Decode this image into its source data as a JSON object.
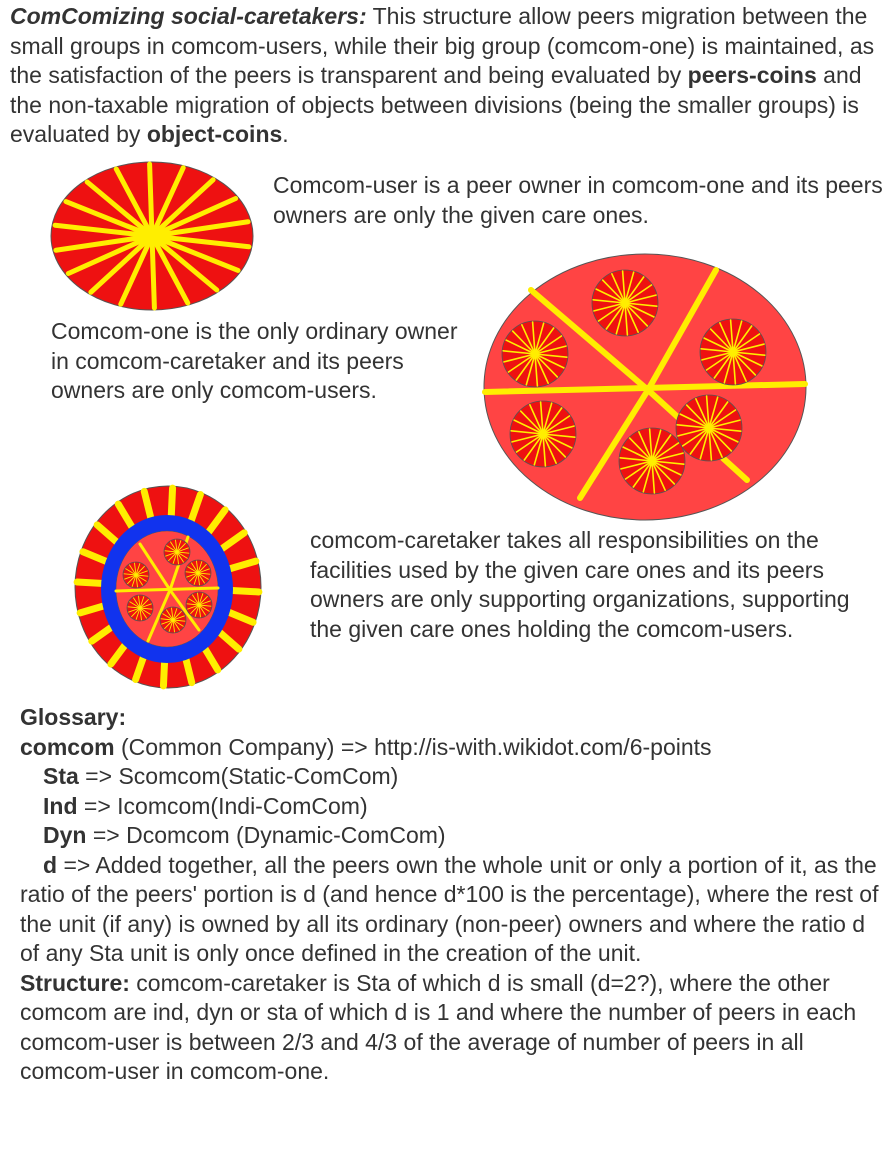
{
  "intro": {
    "lead": "ComComizing social-caretakers:",
    "t1": " This structure allow peers migration between the small groups in comcom-users, while their big group (comcom-one) is maintained, as the satisfaction of the peers is transparent and being evaluated by ",
    "b1": "peers-coins",
    "t2": " and the non-taxable migration of objects between divisions (being the smaller groups) is evaluated by ",
    "b2": "object-coins",
    "t3": "."
  },
  "p_user": "Comcom-user is a peer owner in comcom-one and its peers owners are only the given care ones.",
  "p_one": "Comcom-one is the only ordinary owner in comcom-caretaker and its peers owners are only comcom-users.",
  "p_caretaker": "comcom-caretaker takes all responsibilities on the facilities used by the given care ones and its peers owners are only supporting organizations, supporting the given care ones holding the comcom-users.",
  "glossary": {
    "heading": "Glossary:",
    "comcom_term": "comcom",
    "comcom_def": " (Common Company) => http://is-with.wikidot.com/6-points",
    "sta_term": "Sta",
    "sta_def": " => Scomcom(Static-ComCom)",
    "ind_term": "Ind",
    "ind_def": " => Icomcom(Indi-ComCom)",
    "dyn_term": "Dyn",
    "dyn_def": " => Dcomcom (Dynamic-ComCom)",
    "d_term": "d",
    "d_def": " => Added together, all the peers own the whole unit or only a portion of it, as the ratio of the peers' portion is d (and hence d*100 is the percentage), where the rest of the unit (if any) is owned by all its ordinary (non-peer) owners and where the ratio d of any Sta unit is only once defined in the creation of the unit.",
    "structure_term": "Structure:",
    "structure_def": " comcom-caretaker is Sta of which d is small (d=2?), where the other comcom are ind, dyn or sta of which d is 1 and where the number of peers in each comcom-user is between 2/3 and 4/3 of the average of number of peers in all comcom-user in comcom-one."
  },
  "colors": {
    "red": "#ee1111",
    "light_red": "#ff4444",
    "yellow": "#ffee00",
    "blue": "#1133ee",
    "outline": "#555555"
  }
}
